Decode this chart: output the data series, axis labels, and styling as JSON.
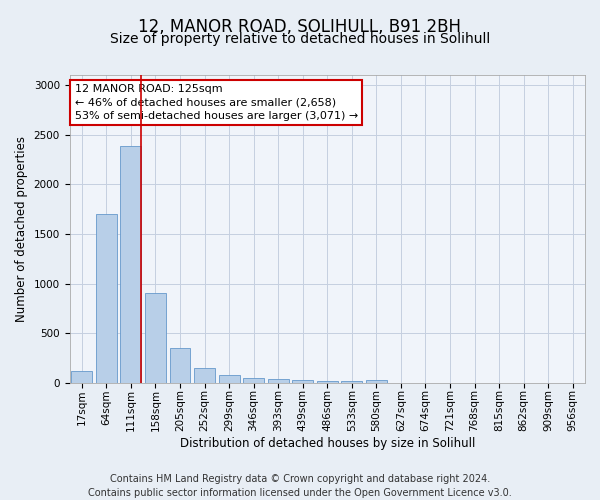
{
  "title1": "12, MANOR ROAD, SOLIHULL, B91 2BH",
  "title2": "Size of property relative to detached houses in Solihull",
  "xlabel": "Distribution of detached houses by size in Solihull",
  "ylabel": "Number of detached properties",
  "categories": [
    "17sqm",
    "64sqm",
    "111sqm",
    "158sqm",
    "205sqm",
    "252sqm",
    "299sqm",
    "346sqm",
    "393sqm",
    "439sqm",
    "486sqm",
    "533sqm",
    "580sqm",
    "627sqm",
    "674sqm",
    "721sqm",
    "768sqm",
    "815sqm",
    "862sqm",
    "909sqm",
    "956sqm"
  ],
  "values": [
    120,
    1700,
    2390,
    910,
    350,
    150,
    85,
    55,
    45,
    30,
    25,
    20,
    30,
    0,
    0,
    0,
    0,
    0,
    0,
    0,
    0
  ],
  "bar_color": "#b8cfe8",
  "bar_edge_color": "#6699cc",
  "vline_color": "#cc0000",
  "vline_x_index": 2,
  "annotation_line1": "12 MANOR ROAD: 125sqm",
  "annotation_line2": "← 46% of detached houses are smaller (2,658)",
  "annotation_line3": "53% of semi-detached houses are larger (3,071) →",
  "annotation_box_color": "#ffffff",
  "annotation_box_edge_color": "#cc0000",
  "ylim": [
    0,
    3100
  ],
  "yticks": [
    0,
    500,
    1000,
    1500,
    2000,
    2500,
    3000
  ],
  "footer1": "Contains HM Land Registry data © Crown copyright and database right 2024.",
  "footer2": "Contains public sector information licensed under the Open Government Licence v3.0.",
  "bg_color": "#e8eef5",
  "plot_bg_color": "#f0f4fa",
  "grid_color": "#c5cfe0",
  "title1_fontsize": 12,
  "title2_fontsize": 10,
  "axis_label_fontsize": 8.5,
  "tick_fontsize": 7.5,
  "annotation_fontsize": 8,
  "footer_fontsize": 7
}
